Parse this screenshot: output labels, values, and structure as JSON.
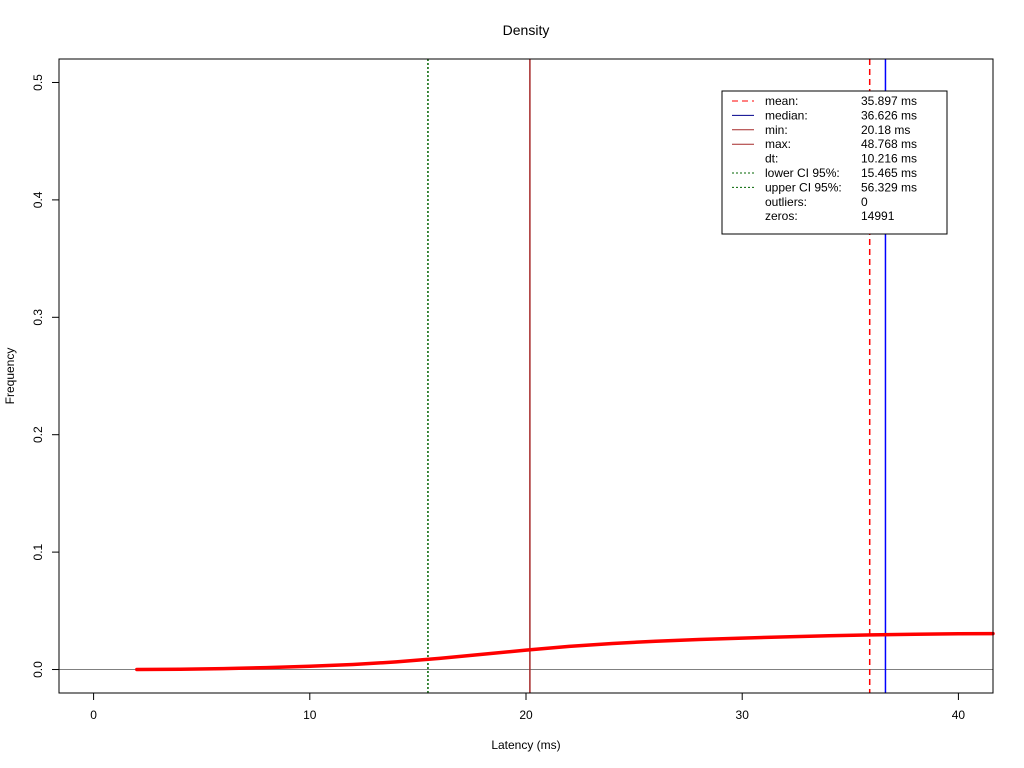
{
  "chart_data": {
    "type": "line",
    "title": "Density",
    "xlabel": "Latency (ms)",
    "ylabel": "Frequency",
    "xlim": [
      -1.6,
      41.6
    ],
    "ylim": [
      -0.02,
      0.52
    ],
    "x_ticks": [
      "0",
      "10",
      "20",
      "30",
      "40"
    ],
    "y_ticks": [
      "0.0",
      "0.1",
      "0.2",
      "0.3",
      "0.4",
      "0.5"
    ],
    "grid": false,
    "legend_position": "top-right",
    "series": [
      {
        "color": "#ff0000",
        "x": [
          2,
          4,
          6,
          8,
          10,
          12,
          14,
          16,
          18,
          20,
          22,
          24,
          26,
          28,
          30,
          32,
          34,
          36,
          38,
          40,
          41.6
        ],
        "y": [
          0.0,
          0.0003,
          0.0008,
          0.0016,
          0.0027,
          0.0043,
          0.0065,
          0.0095,
          0.013,
          0.0165,
          0.0197,
          0.0222,
          0.0241,
          0.0256,
          0.0268,
          0.0278,
          0.0287,
          0.0295,
          0.0301,
          0.0305,
          0.0306
        ]
      }
    ],
    "reference_lines": [
      {
        "key": "mean",
        "x": 35.897,
        "color": "#ff0000",
        "style": "dashed"
      },
      {
        "key": "median",
        "x": 36.626,
        "color": "#0000ff",
        "style": "solid"
      },
      {
        "key": "min",
        "x": 20.18,
        "color": "#a52a2a",
        "style": "solid"
      },
      {
        "key": "lower_ci",
        "x": 15.465,
        "color": "#006400",
        "style": "dotted"
      }
    ],
    "zero_line": {
      "y": 0,
      "color": "#808080"
    },
    "legend": [
      {
        "label": "mean:",
        "value": "35.897 ms",
        "color": "#ff0000",
        "style": "dashed"
      },
      {
        "label": "median:",
        "value": "36.626 ms",
        "color": "#00008b",
        "style": "solid"
      },
      {
        "label": "min:",
        "value": "20.18 ms",
        "color": "#a52a2a",
        "style": "solid"
      },
      {
        "label": "max:",
        "value": "48.768 ms",
        "color": "#a52a2a",
        "style": "solid"
      },
      {
        "label": "dt:",
        "value": "10.216 ms",
        "color": "",
        "style": "none"
      },
      {
        "label": "lower CI 95%:",
        "value": "15.465 ms",
        "color": "#006400",
        "style": "dotted"
      },
      {
        "label": "upper CI 95%:",
        "value": "56.329 ms",
        "color": "#006400",
        "style": "dotted"
      },
      {
        "label": "outliers:",
        "value": "0",
        "color": "",
        "style": "none"
      },
      {
        "label": "zeros:",
        "value": "14991",
        "color": "",
        "style": "none"
      }
    ]
  }
}
